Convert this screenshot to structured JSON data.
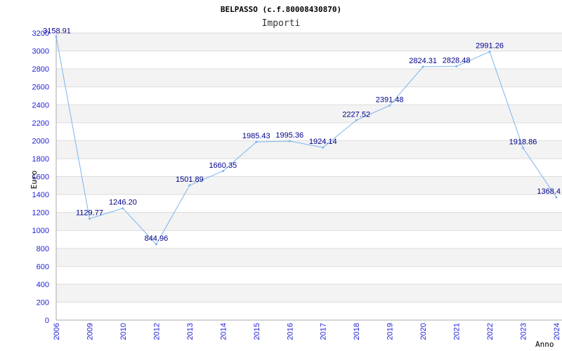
{
  "chart_data": {
    "type": "line",
    "title": "BELPASSO (c.f.80008430870)",
    "subtitle": "Importi",
    "xlabel": "Anno",
    "ylabel": "Euro",
    "ylim": [
      0,
      3200
    ],
    "yticks": [
      0,
      200,
      400,
      600,
      800,
      1000,
      1200,
      1400,
      1600,
      1800,
      2000,
      2200,
      2400,
      2600,
      2800,
      3000,
      3200
    ],
    "grid": true,
    "colors": {
      "line": "#7cb5ec",
      "band": "#f3f3f3",
      "gridline": "#dddddd",
      "tick_text": "#1f1fd8",
      "data_label": "#00008b"
    },
    "categories": [
      "2006",
      "2009",
      "2010",
      "2012",
      "2013",
      "2014",
      "2015",
      "2016",
      "2017",
      "2018",
      "2019",
      "2020",
      "2021",
      "2022",
      "2023",
      "2024"
    ],
    "values": [
      3158.91,
      1129.77,
      1246.2,
      844.96,
      1501.89,
      1660.35,
      1985.43,
      1995.36,
      1924.14,
      2227.52,
      2391.48,
      2824.31,
      2828.48,
      2991.26,
      1918.86,
      1368.4
    ],
    "data_labels": [
      "3158.91",
      "1129.77",
      "1246.20",
      "844.96",
      "1501.89",
      "1660.35",
      "1985.43",
      "1995.36",
      "1924.14",
      "2227.52",
      "2391.48",
      "2824.31",
      "2828.48",
      "2991.26",
      "1918.86",
      "1368.4"
    ]
  }
}
